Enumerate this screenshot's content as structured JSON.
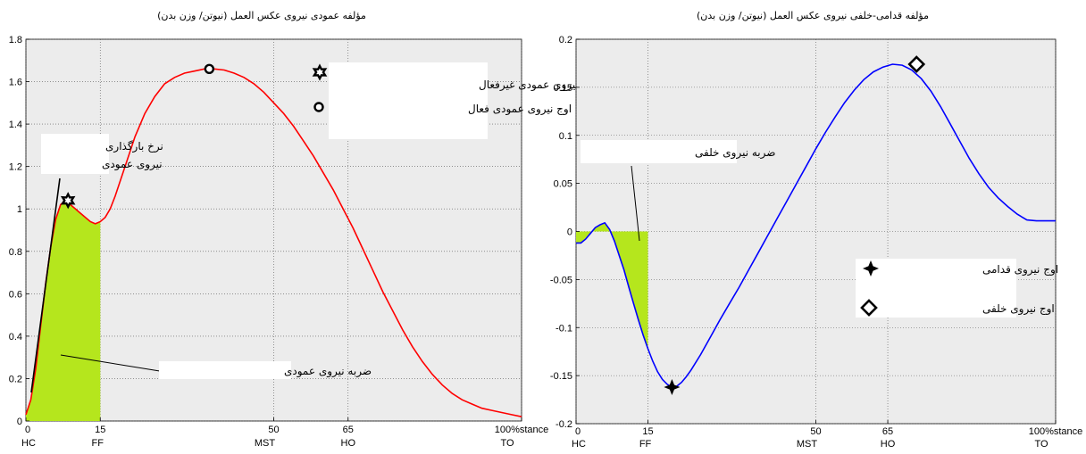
{
  "chart_data": [
    {
      "type": "line",
      "title": "مؤلفه عمودی نیروی عکس العمل (نیوتن/ وزن بدن)",
      "ylim": [
        0,
        1.8
      ],
      "yticks": [
        "0",
        "0.2",
        "0.4",
        "0.6",
        "0.8",
        "1",
        "1.2",
        "1.4",
        "1.6",
        "1.8"
      ],
      "xlim": [
        0,
        100
      ],
      "xticks": [
        "0",
        "15",
        "50",
        "65",
        "100%stance"
      ],
      "phase_labels": [
        "HC",
        "FF",
        "MST",
        "HO",
        "TO"
      ],
      "grid": true,
      "series": [
        {
          "color": "#ff0000",
          "x": [
            0,
            1,
            2,
            3,
            4,
            5,
            6,
            7,
            8,
            9,
            10,
            11,
            12,
            13,
            14,
            15,
            16,
            17,
            18,
            20,
            22,
            24,
            26,
            28,
            30,
            32,
            34,
            36,
            38,
            40,
            42,
            44,
            46,
            48,
            50,
            52,
            54,
            56,
            58,
            60,
            62,
            64,
            66,
            68,
            70,
            72,
            74,
            76,
            78,
            80,
            82,
            84,
            86,
            88,
            90,
            92,
            94,
            96,
            98,
            100
          ],
          "y": [
            0.03,
            0.1,
            0.25,
            0.45,
            0.65,
            0.82,
            0.95,
            1.02,
            1.04,
            1.02,
            1.0,
            0.98,
            0.96,
            0.94,
            0.93,
            0.94,
            0.96,
            1.0,
            1.06,
            1.2,
            1.34,
            1.45,
            1.53,
            1.59,
            1.62,
            1.64,
            1.65,
            1.66,
            1.66,
            1.655,
            1.64,
            1.62,
            1.59,
            1.55,
            1.5,
            1.45,
            1.39,
            1.32,
            1.25,
            1.17,
            1.09,
            1.0,
            0.91,
            0.81,
            0.71,
            0.61,
            0.52,
            0.43,
            0.35,
            0.28,
            0.22,
            0.17,
            0.13,
            0.1,
            0.08,
            0.06,
            0.05,
            0.04,
            0.03,
            0.02
          ]
        }
      ],
      "shaded_region": {
        "x_from": 0,
        "x_to": 15,
        "color": "#b5e61d"
      },
      "markers": [
        {
          "label": "اوج نیروی عمودی غیرفعال",
          "shape": "star-icon",
          "x": 8.5,
          "y": 1.04
        },
        {
          "label": "اوج نیروی عمودی فعال",
          "shape": "circle-icon",
          "x": 37,
          "y": 1.66
        }
      ],
      "annotations": [
        "نرخ بارگذاری",
        "نیروی عمودی",
        "ضربه نیروی عمودی"
      ]
    },
    {
      "type": "line",
      "title": "مؤلفه قدامی-خلفی نیروی عکس العمل (نیوتن/ وزن بدن)",
      "ylim": [
        -0.2,
        0.2
      ],
      "yticks": [
        "-0.2",
        "-0.15",
        "-0.1",
        "-0.05",
        "0",
        "0.05",
        "0.1",
        "0.15",
        "0.2"
      ],
      "xlim": [
        0,
        100
      ],
      "xticks": [
        "0",
        "15",
        "50",
        "65",
        "100%stance"
      ],
      "phase_labels": [
        "HC",
        "FF",
        "MST",
        "HO",
        "TO"
      ],
      "grid": true,
      "series": [
        {
          "color": "#0000ff",
          "x": [
            0,
            1,
            2,
            3,
            4,
            5,
            6,
            7,
            8,
            9,
            10,
            11,
            12,
            13,
            14,
            15,
            16,
            17,
            18,
            19,
            20,
            21,
            22,
            23,
            24,
            26,
            28,
            30,
            32,
            34,
            36,
            38,
            40,
            42,
            44,
            46,
            48,
            50,
            52,
            54,
            56,
            58,
            60,
            62,
            64,
            66,
            68,
            70,
            72,
            74,
            76,
            78,
            80,
            82,
            84,
            86,
            88,
            90,
            92,
            94,
            96,
            98,
            100
          ],
          "y": [
            -0.012,
            -0.012,
            -0.008,
            -0.002,
            0.004,
            0.007,
            0.009,
            0.002,
            -0.01,
            -0.025,
            -0.04,
            -0.058,
            -0.075,
            -0.092,
            -0.108,
            -0.122,
            -0.135,
            -0.146,
            -0.154,
            -0.159,
            -0.162,
            -0.161,
            -0.157,
            -0.151,
            -0.144,
            -0.128,
            -0.11,
            -0.092,
            -0.075,
            -0.058,
            -0.04,
            -0.022,
            -0.004,
            0.014,
            0.032,
            0.05,
            0.068,
            0.086,
            0.103,
            0.119,
            0.134,
            0.147,
            0.158,
            0.166,
            0.171,
            0.174,
            0.173,
            0.168,
            0.159,
            0.146,
            0.13,
            0.112,
            0.094,
            0.076,
            0.06,
            0.046,
            0.035,
            0.026,
            0.018,
            0.012,
            0.011,
            0.011,
            0.011
          ]
        }
      ],
      "shaded_region": {
        "x_from": 0,
        "x_to": 15,
        "color": "#b5e61d"
      },
      "markers": [
        {
          "label": "اوج نیروی قدامی",
          "shape": "plus-star-icon",
          "x": 20,
          "y": -0.162
        },
        {
          "label": "اوج نیروی خلفی",
          "shape": "diamond-icon",
          "x": 71,
          "y": 0.174
        }
      ],
      "annotations": [
        "ضربه نیروی خلفی"
      ]
    }
  ]
}
